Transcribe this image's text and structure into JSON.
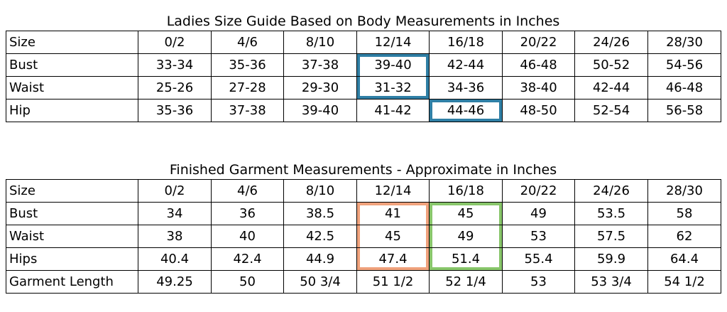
{
  "body_table": {
    "title": "Ladies Size Guide Based on Body Measurements in Inches",
    "header": [
      "Size",
      "0/2",
      "4/6",
      "8/10",
      "12/14",
      "16/18",
      "20/22",
      "24/26",
      "28/30"
    ],
    "rows": [
      [
        "Bust",
        "33-34",
        "35-36",
        "37-38",
        "39-40",
        "42-44",
        "46-48",
        "50-52",
        "54-56"
      ],
      [
        "Waist",
        "25-26",
        "27-28",
        "29-30",
        "31-32",
        "34-36",
        "38-40",
        "42-44",
        "46-48"
      ],
      [
        "Hip",
        "35-36",
        "37-38",
        "39-40",
        "41-42",
        "44-46",
        "48-50",
        "52-54",
        "56-58"
      ]
    ]
  },
  "garment_table": {
    "title": "Finished Garment Measurements - Approximate in Inches",
    "header": [
      "Size",
      "0/2",
      "4/6",
      "8/10",
      "12/14",
      "16/18",
      "20/22",
      "24/26",
      "28/30"
    ],
    "rows": [
      [
        "Bust",
        "34",
        "36",
        "38.5",
        "41",
        "45",
        "49",
        "53.5",
        "58"
      ],
      [
        "Waist",
        "38",
        "40",
        "42.5",
        "45",
        "49",
        "53",
        "57.5",
        "62"
      ],
      [
        "Hips",
        "40.4",
        "42.4",
        "44.9",
        "47.4",
        "51.4",
        "55.4",
        "59.9",
        "64.4"
      ],
      [
        "Garment Length",
        "49.25",
        "50",
        "50 3/4",
        "51 1/2",
        "52 1/4",
        "53",
        "53 3/4",
        "54 1/2"
      ]
    ]
  },
  "highlight_colors": {
    "blue": "#2f7fa5",
    "orange": "#f0a27c",
    "green": "#88c66a"
  }
}
